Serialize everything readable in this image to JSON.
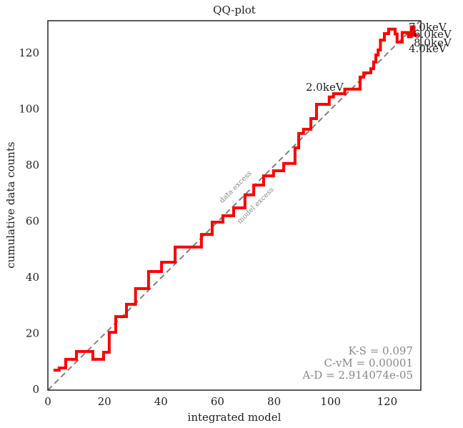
{
  "chart_data": {
    "type": "line",
    "title": "QQ-plot",
    "x_label": "integrated model",
    "y_label": "cumulative data counts",
    "x": [
      2,
      4,
      4,
      6.3,
      6.3,
      10.1,
      10.1,
      15.9,
      15.9,
      19.7,
      19.7,
      21.7,
      21.7,
      24,
      24,
      27.8,
      27.8,
      31,
      31,
      35.6,
      35.6,
      40.2,
      40.2,
      45,
      45,
      54.3,
      54.3,
      58.1,
      58.1,
      61.9,
      61.9,
      65.7,
      65.7,
      69.7,
      69.7,
      72.8,
      72.8,
      76.3,
      76.3,
      79.8,
      79.8,
      83.4,
      83.4,
      87.4,
      87.4,
      88.7,
      88.7,
      90.4,
      90.4,
      93,
      93,
      95,
      95,
      99.5,
      99.5,
      101,
      101,
      105,
      105,
      110.4,
      110.4,
      111.7,
      111.7,
      114.2,
      114.2,
      115.2,
      115.2,
      116,
      116,
      116.8,
      116.8,
      117.6,
      117.6,
      119,
      119,
      120.5,
      120.5,
      122.8,
      122.8,
      123.5,
      123.5,
      125.3,
      125.3,
      127.5,
      127.5,
      128.5,
      128.5,
      129.5,
      129.5,
      131
    ],
    "values": [
      7.1,
      7.1,
      7.9,
      7.9,
      11,
      11,
      13.8,
      13.8,
      11,
      11,
      13.5,
      13.5,
      20.6,
      20.6,
      26.2,
      26.2,
      30.6,
      30.6,
      36.2,
      36.2,
      42.3,
      42.3,
      45.6,
      45.6,
      51,
      51,
      55.5,
      55.5,
      59.9,
      59.9,
      62.2,
      62.2,
      65,
      65,
      69.6,
      69.6,
      73.1,
      73.1,
      76.4,
      76.4,
      78.2,
      78.2,
      80.8,
      80.8,
      86.4,
      86.4,
      91.5,
      91.5,
      93,
      93,
      96.8,
      96.8,
      101.9,
      101.9,
      104.5,
      104.5,
      105.7,
      105.7,
      107.3,
      107.3,
      111.6,
      111.6,
      113.1,
      113.1,
      114.6,
      114.6,
      117,
      117,
      119.5,
      119.5,
      121.3,
      121.3,
      124.8,
      124.8,
      127.1,
      127.1,
      128.7,
      128.7,
      127,
      127,
      124.1,
      124.1,
      127.5,
      127.5,
      126,
      126,
      129.5,
      129.5,
      126.5,
      126.5
    ],
    "color": "#ff0000",
    "xlim": [
      0,
      131.9
    ],
    "ylim": [
      0,
      131.7
    ],
    "xticks": [
      0,
      20,
      40,
      60,
      80,
      100,
      120
    ],
    "yticks": [
      0,
      20,
      40,
      60,
      80,
      100,
      120
    ],
    "grid": false,
    "diagonal": true,
    "diagonal_color": "#808080",
    "annotations": [
      "2.0keV",
      "7.0keV",
      "6.0keV",
      "8.0keV",
      "4.0keV"
    ],
    "region_labels": [
      "data excess",
      "model excess"
    ],
    "stats": [
      "K-S = 0.097",
      "C-vM = 0.00001",
      "A-D = 2.914074e-05"
    ]
  }
}
